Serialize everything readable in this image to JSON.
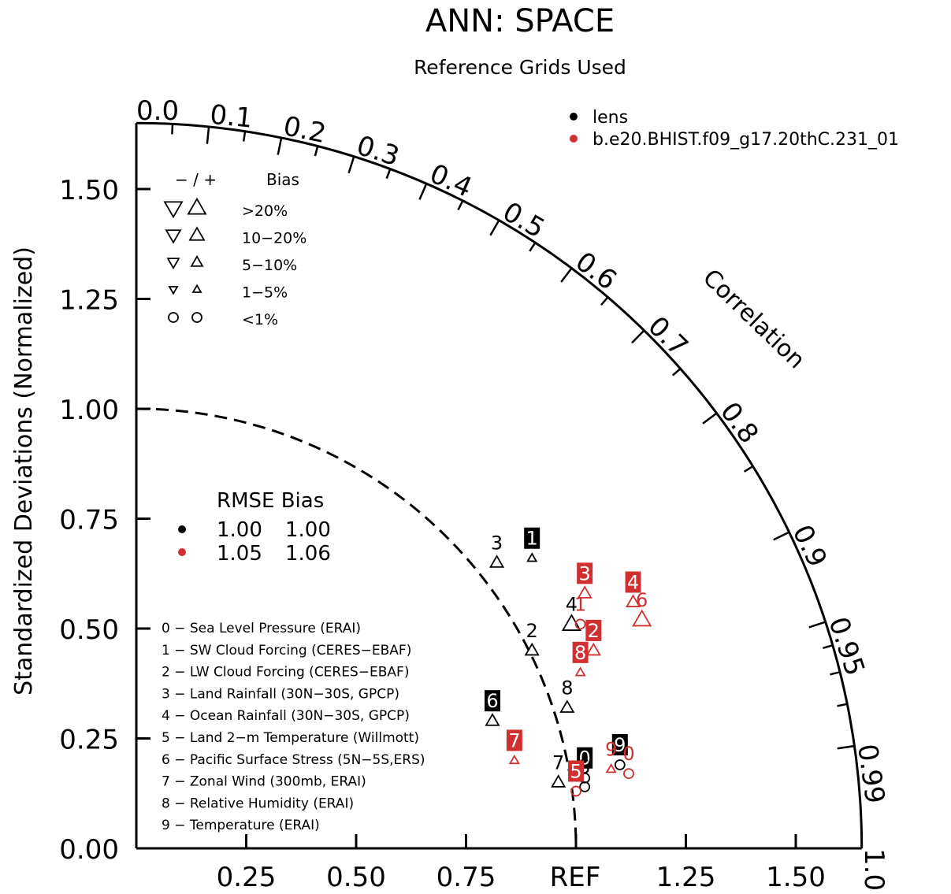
{
  "chart_data": {
    "type": "taylor",
    "title": "ANN: SPACE",
    "subtitle": "Reference Grids Used",
    "ylabel": "Standardized Deviations (Normalized)",
    "arc_label": "Correlation",
    "ref_label": "REF",
    "max_std": 1.65,
    "y_ticks": [
      "0.00",
      "0.25",
      "0.50",
      "0.75",
      "1.00",
      "1.25",
      "1.50"
    ],
    "x_ticks": [
      "0.25",
      "0.50",
      "0.75",
      "1.25",
      "1.50"
    ],
    "correlation_ticks": [
      "0.0",
      "0.1",
      "0.2",
      "0.3",
      "0.4",
      "0.5",
      "0.6",
      "0.7",
      "0.8",
      "0.9",
      "0.95",
      "0.99",
      "1.0"
    ],
    "series": [
      {
        "name": "lens",
        "color": "#000000",
        "points": [
          {
            "id": "0",
            "x": 1.02,
            "y": 0.16,
            "marker": "circle",
            "boxed": true
          },
          {
            "id": "1",
            "x": 0.9,
            "y": 0.66,
            "marker": "tri-up-small",
            "boxed": true
          },
          {
            "id": "2",
            "x": 0.9,
            "y": 0.45,
            "marker": "tri-up-med",
            "boxed": false
          },
          {
            "id": "3",
            "x": 0.82,
            "y": 0.65,
            "marker": "tri-up-med",
            "boxed": false
          },
          {
            "id": "4",
            "x": 0.99,
            "y": 0.51,
            "marker": "tri-up-large",
            "boxed": false
          },
          {
            "id": "5",
            "x": 1.02,
            "y": 0.14,
            "marker": "circle",
            "boxed": false
          },
          {
            "id": "6",
            "x": 0.81,
            "y": 0.29,
            "marker": "tri-up-med",
            "boxed": true
          },
          {
            "id": "7",
            "x": 0.96,
            "y": 0.15,
            "marker": "tri-up-med",
            "boxed": false
          },
          {
            "id": "8",
            "x": 0.98,
            "y": 0.32,
            "marker": "tri-up-med",
            "boxed": false
          },
          {
            "id": "9",
            "x": 1.1,
            "y": 0.19,
            "marker": "circle",
            "boxed": true
          }
        ]
      },
      {
        "name": "b.e20.BHIST.f09_g17.20thC.231_01",
        "color": "#d03030",
        "points": [
          {
            "id": "0",
            "x": 1.12,
            "y": 0.17,
            "marker": "circle",
            "boxed": false
          },
          {
            "id": "1",
            "x": 1.01,
            "y": 0.51,
            "marker": "circle",
            "boxed": false
          },
          {
            "id": "2",
            "x": 1.04,
            "y": 0.45,
            "marker": "tri-up-med",
            "boxed": true
          },
          {
            "id": "3",
            "x": 1.02,
            "y": 0.58,
            "marker": "tri-up-med",
            "boxed": true
          },
          {
            "id": "4",
            "x": 1.13,
            "y": 0.56,
            "marker": "tri-up-med",
            "boxed": true
          },
          {
            "id": "5",
            "x": 1.0,
            "y": 0.13,
            "marker": "circle",
            "boxed": true
          },
          {
            "id": "6",
            "x": 1.15,
            "y": 0.52,
            "marker": "tri-up-large",
            "boxed": false
          },
          {
            "id": "7",
            "x": 0.86,
            "y": 0.2,
            "marker": "tri-up-small",
            "boxed": true
          },
          {
            "id": "8",
            "x": 1.01,
            "y": 0.4,
            "marker": "tri-up-small",
            "boxed": true
          },
          {
            "id": "9",
            "x": 1.08,
            "y": 0.18,
            "marker": "tri-up-small",
            "boxed": false
          }
        ]
      }
    ],
    "legend": {
      "position": "top-right",
      "entries": [
        {
          "label": "lens",
          "color": "#000000"
        },
        {
          "label": "b.e20.BHIST.f09_g17.20thC.231_01",
          "color": "#d03030"
        }
      ]
    },
    "bias_legend": {
      "header_signs": "− / +",
      "header_bias": "Bias",
      "rows": [
        {
          "label": ">20%",
          "marker": "tri-large"
        },
        {
          "label": "10−20%",
          "marker": "tri-med"
        },
        {
          "label": "5−10%",
          "marker": "tri-small"
        },
        {
          "label": "1−5%",
          "marker": "tri-tiny"
        },
        {
          "label": "<1%",
          "marker": "circle"
        }
      ]
    },
    "rmse_table": {
      "header": "RMSE Bias",
      "rows": [
        {
          "color": "#000000",
          "rmse": "1.00",
          "bias": "1.00"
        },
        {
          "color": "#d03030",
          "rmse": "1.05",
          "bias": "1.06"
        }
      ]
    },
    "variables": [
      "0 − Sea Level Pressure (ERAI)",
      "1 − SW Cloud Forcing (CERES−EBAF)",
      "2 − LW Cloud Forcing (CERES−EBAF)",
      "3 − Land Rainfall (30N−30S, GPCP)",
      "4 − Ocean Rainfall (30N−30S, GPCP)",
      "5 − Land 2−m Temperature (Willmott)",
      "6 − Pacific Surface Stress (5N−5S,ERS)",
      "7 − Zonal Wind (300mb, ERAI)",
      "8 − Relative Humidity (ERAI)",
      "9 − Temperature (ERAI)"
    ]
  }
}
